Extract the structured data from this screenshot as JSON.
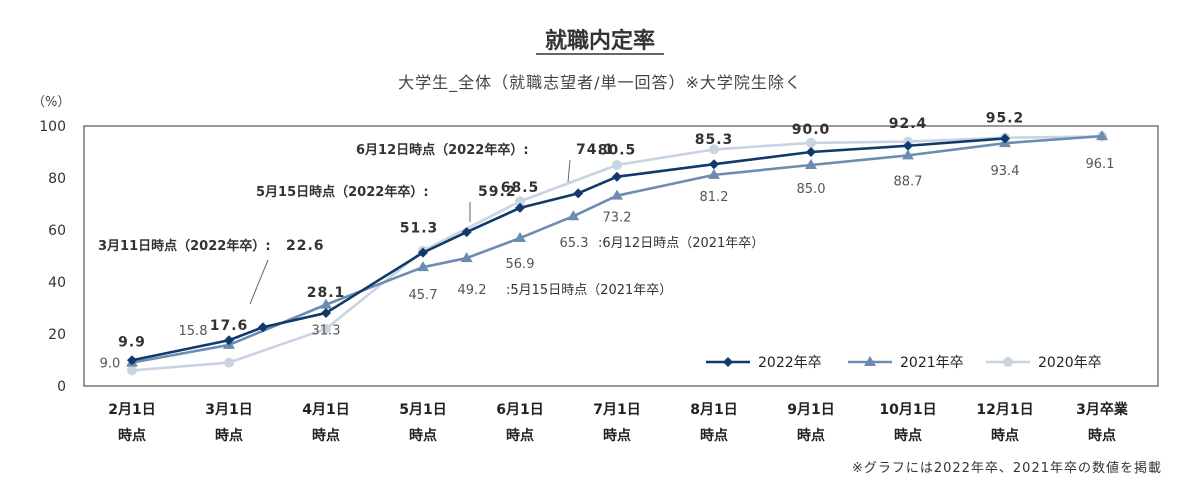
{
  "chart_data": {
    "type": "line",
    "title": "就職内定率",
    "subtitle": "大学生_全体（就職志望者/単一回答）※大学院生除く",
    "y_unit": "（%）",
    "ylim": [
      0,
      100
    ],
    "yticks": [
      "0",
      "20",
      "40",
      "60",
      "80",
      "100"
    ],
    "categories": [
      [
        "2月1日",
        "時点"
      ],
      [
        "3月1日",
        "時点"
      ],
      [
        "4月1日",
        "時点"
      ],
      [
        "5月1日",
        "時点"
      ],
      [
        "6月1日",
        "時点"
      ],
      [
        "7月1日",
        "時点"
      ],
      [
        "8月1日",
        "時点"
      ],
      [
        "9月1日",
        "時点"
      ],
      [
        "10月1日",
        "時点"
      ],
      [
        "12月1日",
        "時点"
      ],
      [
        "3月卒業",
        "時点"
      ]
    ],
    "series": [
      {
        "name": "2022年卒",
        "color": "#0f3a6b",
        "marker": "diamond",
        "points": [
          {
            "x": 0,
            "y": 9.9,
            "label": "9.9"
          },
          {
            "x": 1,
            "y": 17.6,
            "label": "17.6"
          },
          {
            "x": 1.35,
            "y": 22.6
          },
          {
            "x": 2,
            "y": 28.1,
            "label": "28.1"
          },
          {
            "x": 3,
            "y": 51.3,
            "label": "51.3"
          },
          {
            "x": 3.45,
            "y": 59.2
          },
          {
            "x": 4,
            "y": 68.5,
            "label": "68.5"
          },
          {
            "x": 4.6,
            "y": 74.1
          },
          {
            "x": 5,
            "y": 80.5,
            "label": "80.5"
          },
          {
            "x": 6,
            "y": 85.3,
            "label": "85.3"
          },
          {
            "x": 7,
            "y": 90.0,
            "label": "90.0"
          },
          {
            "x": 8,
            "y": 92.4,
            "label": "92.4"
          },
          {
            "x": 9,
            "y": 95.2,
            "label": "95.2"
          }
        ]
      },
      {
        "name": "2021年卒",
        "color": "#6d8db0",
        "marker": "triangle",
        "points": [
          {
            "x": 0,
            "y": 9.0,
            "label": "9.0"
          },
          {
            "x": 1,
            "y": 15.8,
            "label": "15.8"
          },
          {
            "x": 2,
            "y": 31.3,
            "label": "31.3"
          },
          {
            "x": 3,
            "y": 45.7,
            "label": "45.7"
          },
          {
            "x": 3.45,
            "y": 49.2
          },
          {
            "x": 4,
            "y": 56.9,
            "label": "56.9"
          },
          {
            "x": 4.55,
            "y": 65.3
          },
          {
            "x": 5,
            "y": 73.2,
            "label": "73.2"
          },
          {
            "x": 6,
            "y": 81.2,
            "label": "81.2"
          },
          {
            "x": 7,
            "y": 85.0,
            "label": "85.0"
          },
          {
            "x": 8,
            "y": 88.7,
            "label": "88.7"
          },
          {
            "x": 9,
            "y": 93.4,
            "label": "93.4"
          },
          {
            "x": 10,
            "y": 96.1,
            "label": "96.1"
          }
        ]
      },
      {
        "name": "2020年卒",
        "color": "#c9d4e3",
        "marker": "circle",
        "points": [
          {
            "x": 0,
            "y": 6.0
          },
          {
            "x": 1,
            "y": 9.0
          },
          {
            "x": 2,
            "y": 22.0
          },
          {
            "x": 3,
            "y": 52.0
          },
          {
            "x": 4,
            "y": 71.0
          },
          {
            "x": 5,
            "y": 85.0
          },
          {
            "x": 6,
            "y": 91.0
          },
          {
            "x": 7,
            "y": 93.5
          },
          {
            "x": 8,
            "y": 94.0
          },
          {
            "x": 9,
            "y": 95.5
          },
          {
            "x": 10,
            "y": 96.0
          }
        ]
      }
    ],
    "annotations": [
      {
        "name": "ann-3-11",
        "text": "3月11日時点（2022年卒）:",
        "value": "22.6",
        "series": 0,
        "x": 1.35,
        "y": 22.6
      },
      {
        "name": "ann-5-15-2022",
        "text": "5月15日時点（2022年卒）:",
        "value": "59.2",
        "series": 0,
        "x": 3.45,
        "y": 59.2
      },
      {
        "name": "ann-6-12-2022",
        "text": "6月12日時点（2022年卒）:",
        "value": "74.1",
        "series": 0,
        "x": 4.6,
        "y": 74.1
      },
      {
        "name": "ann-5-15-2021",
        "text": ":5月15日時点（2021年卒）",
        "value": "49.2",
        "series": 1,
        "x": 3.45,
        "y": 49.2
      },
      {
        "name": "ann-6-12-2021",
        "text": ":6月12日時点（2021年卒）",
        "value": "65.3",
        "series": 1,
        "x": 4.55,
        "y": 65.3
      }
    ],
    "legend": {
      "placement": "bottom-right",
      "items": [
        "2022年卒",
        "2021年卒",
        "2020年卒"
      ]
    },
    "grid": false
  },
  "footnote": "※グラフには2022年卒、2021年卒の数値を掲載"
}
